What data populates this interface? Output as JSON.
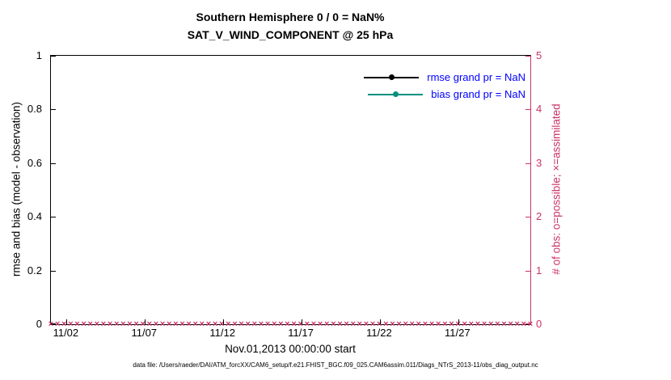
{
  "title": {
    "line1": "Southern Hemisphere 0 / 0 = NaN%",
    "line2": "SAT_V_WIND_COMPONENT @ 25 hPa"
  },
  "axes": {
    "left": {
      "label": "rmse and bias (model - observation)",
      "ticks": [
        "1",
        "0.8",
        "0.6",
        "0.4",
        "0.2",
        "0"
      ],
      "color": "#000000"
    },
    "right": {
      "label": "# of obs: o=possible; ×=assimilated",
      "ticks": [
        "5",
        "4",
        "3",
        "2",
        "1",
        "0"
      ],
      "color": "#cc3366"
    },
    "x": {
      "label": "Nov.01,2013 00:00:00 start",
      "ticks": [
        "11/02",
        "11/07",
        "11/12",
        "11/17",
        "11/22",
        "11/27"
      ]
    }
  },
  "legend": {
    "text_color": "#0000ff",
    "entries": [
      {
        "label": "rmse grand pr = NaN",
        "color": "#000000"
      },
      {
        "label": "bias grand pr = NaN",
        "color": "#008f80"
      }
    ]
  },
  "footer": "data file: /Users/raeder/DAI/ATM_forcXX/CAM6_setup/f.e21.FHIST_BGC.f09_025.CAM6assim.011/Diags_NTrS_2013-11/obs_diag_output.nc",
  "chart_data": {
    "type": "line",
    "title": "Southern Hemisphere 0 / 0 = NaN%",
    "subtitle": "SAT_V_WIND_COMPONENT @ 25 hPa",
    "xlabel": "Nov.01,2013 00:00:00 start",
    "ylabel_left": "rmse and bias (model - observation)",
    "ylabel_right": "# of obs: o=possible; ×=assimilated",
    "ylim_left": [
      0,
      1
    ],
    "ylim_right": [
      0,
      5
    ],
    "x_tick_labels": [
      "11/02",
      "11/07",
      "11/12",
      "11/17",
      "11/22",
      "11/27"
    ],
    "x_tick_days": [
      1,
      6,
      11,
      16,
      21,
      26
    ],
    "x_range_days": [
      0,
      30.6
    ],
    "grid": false,
    "legend_position": "upper right inside",
    "series": [
      {
        "name": "rmse grand pr = NaN",
        "axis": "left",
        "values": "all NaN - no line drawn"
      },
      {
        "name": "bias grand pr = NaN",
        "axis": "left",
        "values": "all NaN - no line drawn"
      },
      {
        "name": "# of obs possible (o)",
        "axis": "right",
        "constant_value": 0
      },
      {
        "name": "# of obs assimilated (×)",
        "axis": "right",
        "constant_value": 0
      }
    ],
    "obs_markers": {
      "glyph": "×",
      "count": 74,
      "value": 0
    }
  }
}
